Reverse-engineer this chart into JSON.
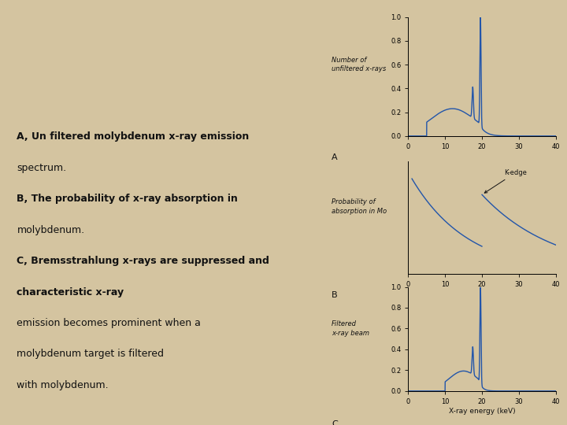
{
  "bg_color": "#d4c4a0",
  "line_color": "#2255aa",
  "text_color": "#111111",
  "title_A": "Number of\nunfiltered x-rays",
  "title_B": "Probability of\nabsorption in Mo",
  "title_C": "Filtered\nx-ray beam",
  "xlabel": "X-ray energy (keV)",
  "label_A": "A",
  "label_B": "B",
  "label_C": "C",
  "xlim": [
    0,
    40
  ],
  "ylim_A": [
    0,
    1.0
  ],
  "ylim_C": [
    0,
    1.0
  ],
  "yticks_AC": [
    0,
    0.2,
    0.4,
    0.6,
    0.8,
    1.0
  ],
  "xticks": [
    0,
    10,
    20,
    30,
    40
  ],
  "left_text_lines": [
    "A, Un filtered molybdenum x-ray emission",
    "spectrum.",
    "B, The probability of x-ray absorption in",
    "molybdenum.",
    "C, Bremsstrahlung x-rays are suppressed and",
    "characteristic x-ray",
    "emission becomes prominent when a",
    "molybdenum target is filtered",
    "with molybdenum."
  ],
  "left_text_bold": [
    true,
    false,
    true,
    false,
    true,
    true,
    false,
    false,
    false
  ],
  "kedge_annotation": "K-edge"
}
